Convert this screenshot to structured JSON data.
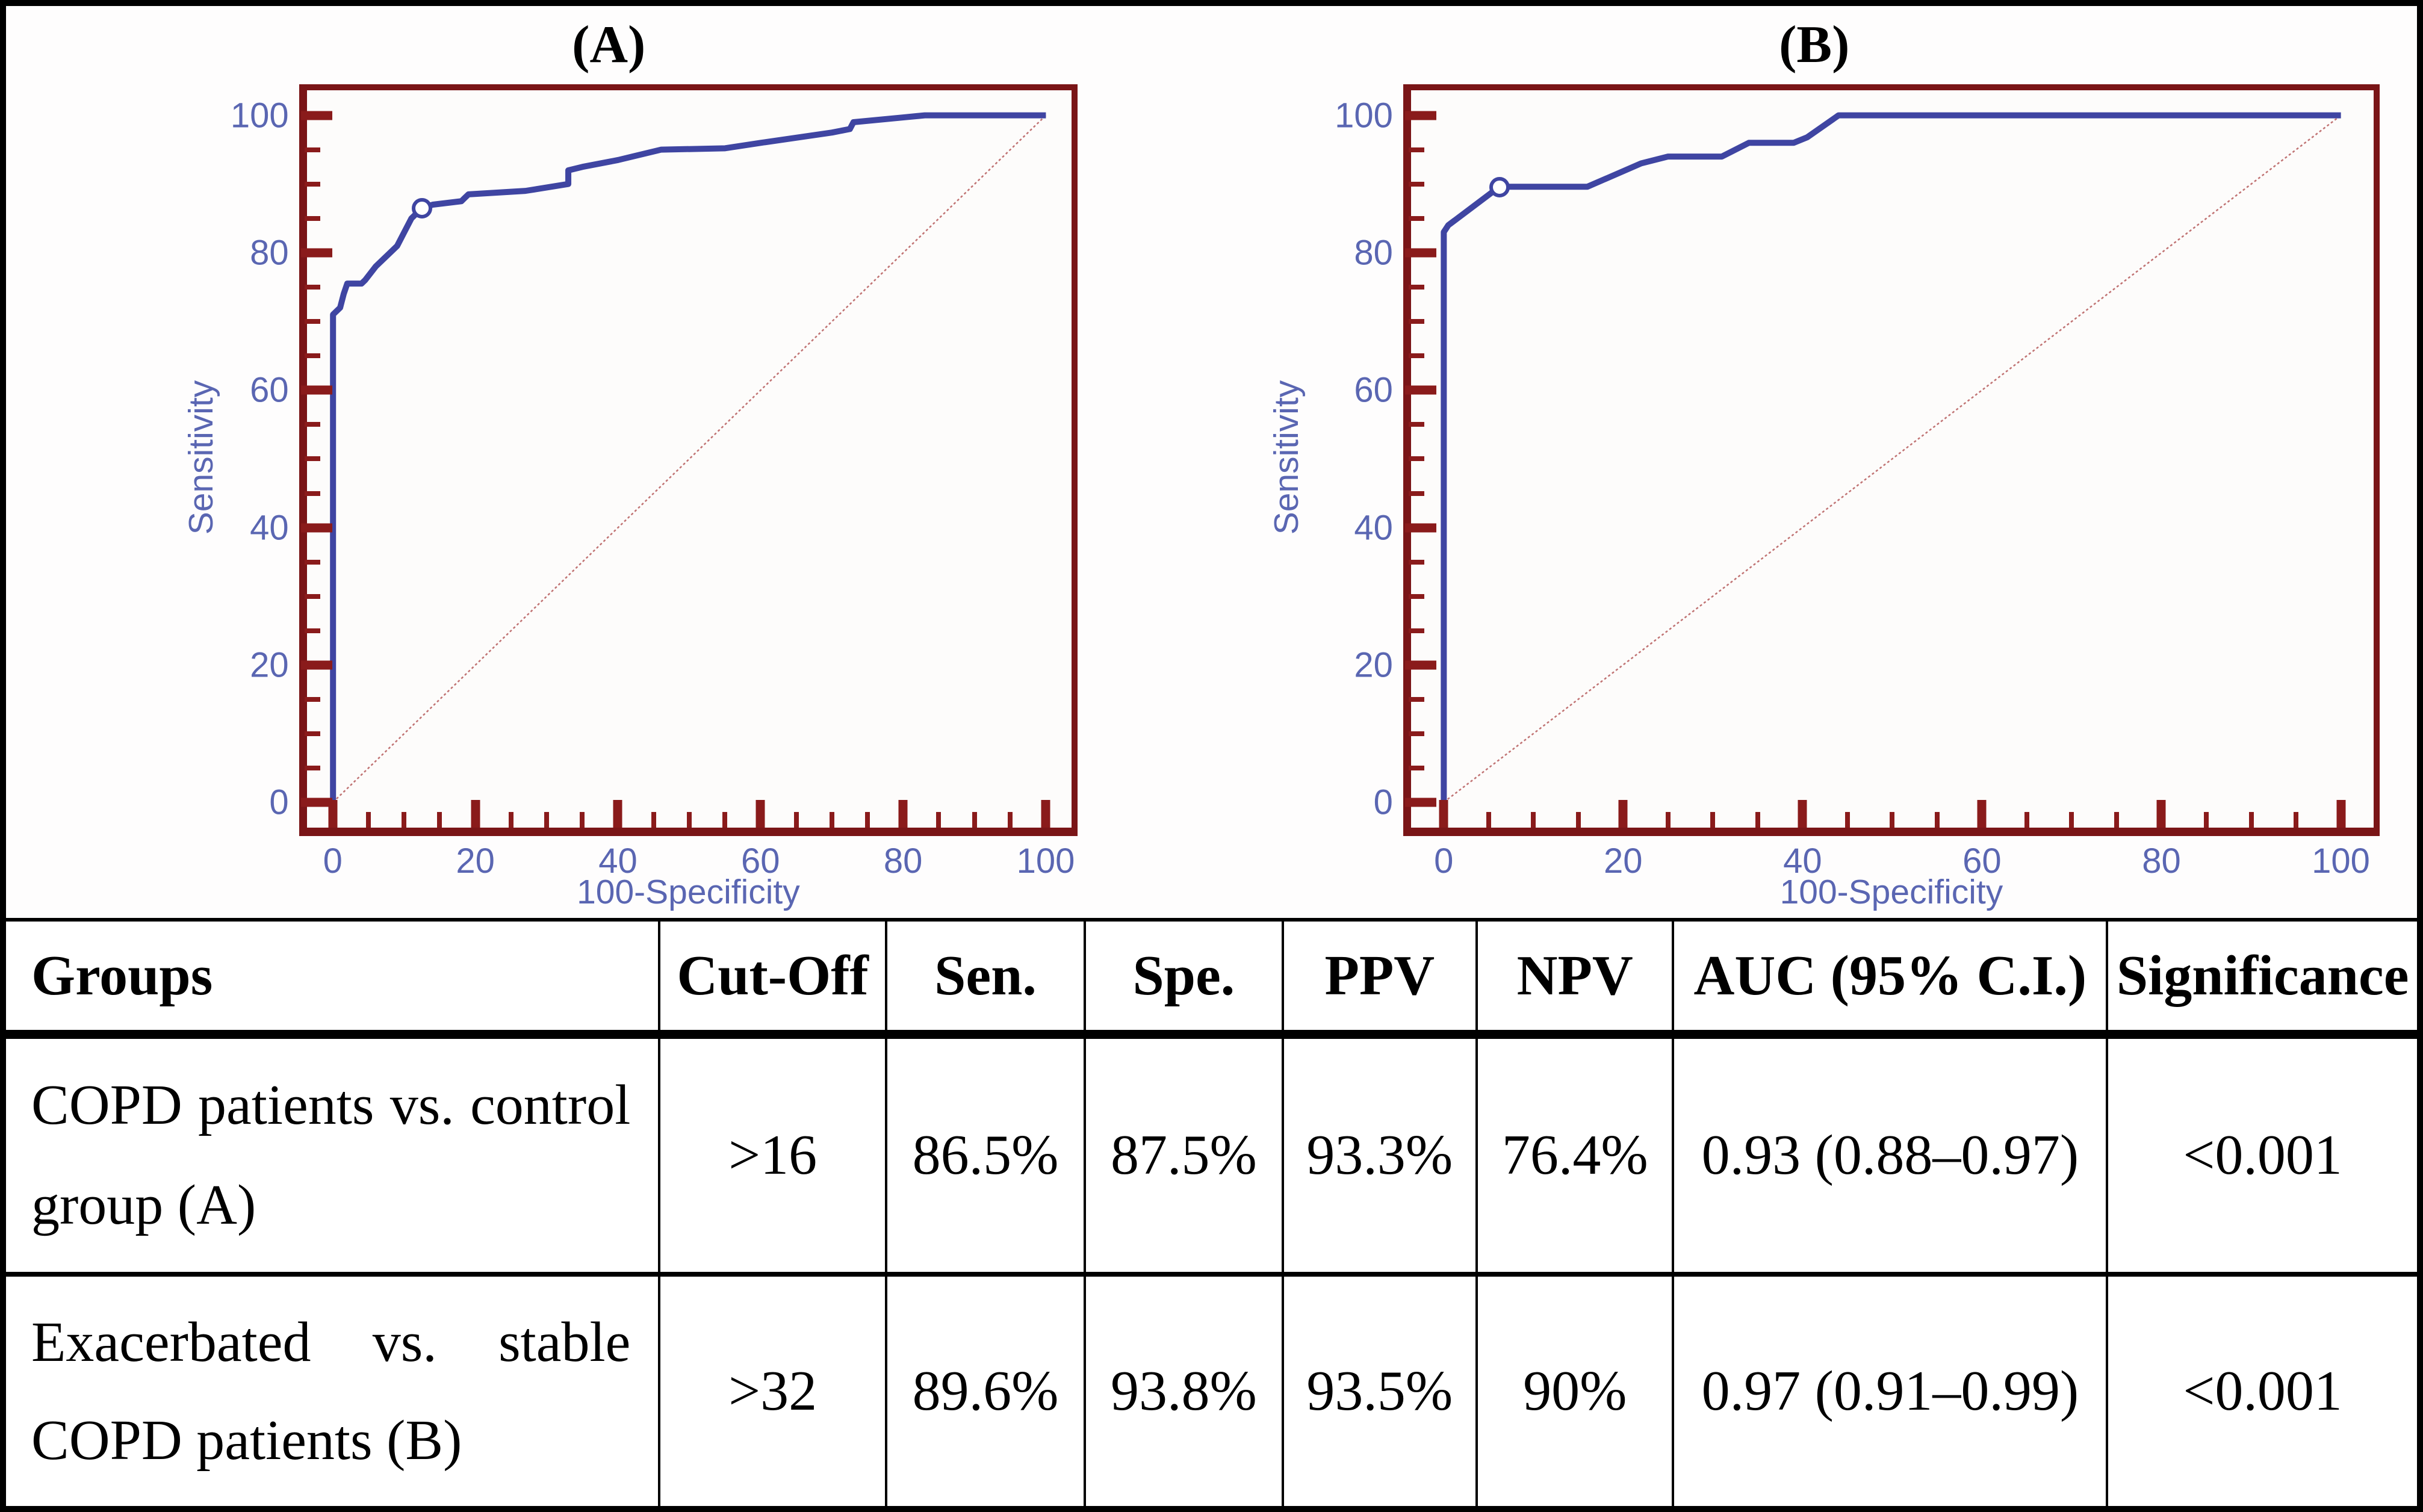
{
  "chart_data": [
    {
      "type": "line",
      "panel": "A",
      "title": "(A)",
      "xlabel": "100-Specificity",
      "ylabel": "Sensitivity",
      "xlim": [
        0,
        100
      ],
      "ylim": [
        0,
        100
      ],
      "ticks_major": [
        0,
        20,
        40,
        60,
        80,
        100
      ],
      "tick_minor_step": 5,
      "grid": false,
      "legend": false,
      "diagonal_reference": true,
      "series": [
        {
          "name": "ROC curve COPD patients vs. control group",
          "points": [
            [
              0,
              0
            ],
            [
              0,
              71
            ],
            [
              1,
              72
            ],
            [
              1.5,
              74
            ],
            [
              2,
              75.5
            ],
            [
              4,
              75.5
            ],
            [
              4.5,
              76
            ],
            [
              6,
              78
            ],
            [
              8,
              80
            ],
            [
              9,
              81
            ],
            [
              10,
              83
            ],
            [
              11,
              85
            ],
            [
              12.5,
              86.5
            ],
            [
              14,
              87
            ],
            [
              18,
              87.5
            ],
            [
              18.5,
              88
            ],
            [
              19,
              88.5
            ],
            [
              27,
              89
            ],
            [
              33,
              90
            ],
            [
              33,
              92
            ],
            [
              35,
              92.5
            ],
            [
              40,
              93.5
            ],
            [
              46,
              95
            ],
            [
              55,
              95.2
            ],
            [
              60,
              96
            ],
            [
              70,
              97.5
            ],
            [
              72.5,
              98
            ],
            [
              73,
              99
            ],
            [
              80,
              99.7
            ],
            [
              83,
              100
            ],
            [
              100,
              100
            ]
          ]
        }
      ],
      "cutoff_point": {
        "x": 12.5,
        "y": 86.5
      }
    },
    {
      "type": "line",
      "panel": "B",
      "title": "(B)",
      "xlabel": "100-Specificity",
      "ylabel": "Sensitivity",
      "xlim": [
        0,
        100
      ],
      "ylim": [
        0,
        100
      ],
      "ticks_major": [
        0,
        20,
        40,
        60,
        80,
        100
      ],
      "tick_minor_step": 5,
      "grid": false,
      "legend": false,
      "diagonal_reference": true,
      "series": [
        {
          "name": "ROC curve exacerbated vs. stable COPD patients",
          "points": [
            [
              0,
              0
            ],
            [
              0,
              83
            ],
            [
              0.5,
              84
            ],
            [
              6.2,
              89.6
            ],
            [
              16,
              89.6
            ],
            [
              22,
              93
            ],
            [
              25,
              94
            ],
            [
              31,
              94
            ],
            [
              34,
              96
            ],
            [
              39,
              96
            ],
            [
              40.5,
              96.8
            ],
            [
              44,
              100
            ],
            [
              100,
              100
            ]
          ]
        }
      ],
      "cutoff_point": {
        "x": 6.2,
        "y": 89.6
      }
    }
  ],
  "table": {
    "headers": [
      "Groups",
      "Cut-Off",
      "Sen.",
      "Spe.",
      "PPV",
      "NPV",
      "AUC (95% C.I.)",
      "Significance"
    ],
    "rows": [
      {
        "group_line1": "COPD patients vs. control",
        "group_line2": "group (A)",
        "cutoff": ">16",
        "sen": "86.5%",
        "spe": "87.5%",
        "ppv": "93.3%",
        "npv": "76.4%",
        "auc": "0.93 (0.88–0.97)",
        "significance": "<0.001"
      },
      {
        "group_line1": "Exacerbated vs. stable",
        "group_line2": "COPD patients (B)",
        "cutoff": ">32",
        "sen": "89.6%",
        "spe": "93.8%",
        "ppv": "93.5%",
        "npv": "90%",
        "auc": "0.97 (0.91–0.99)",
        "significance": "<0.001"
      }
    ]
  },
  "colors": {
    "axis_maroon": "#7a1517",
    "tick_maroon": "#8a1b1b",
    "curve_blue": "#3f45a2",
    "label_blue": "#5a66b2",
    "diagonal_red": "#c07272",
    "table_border": "#000000"
  }
}
